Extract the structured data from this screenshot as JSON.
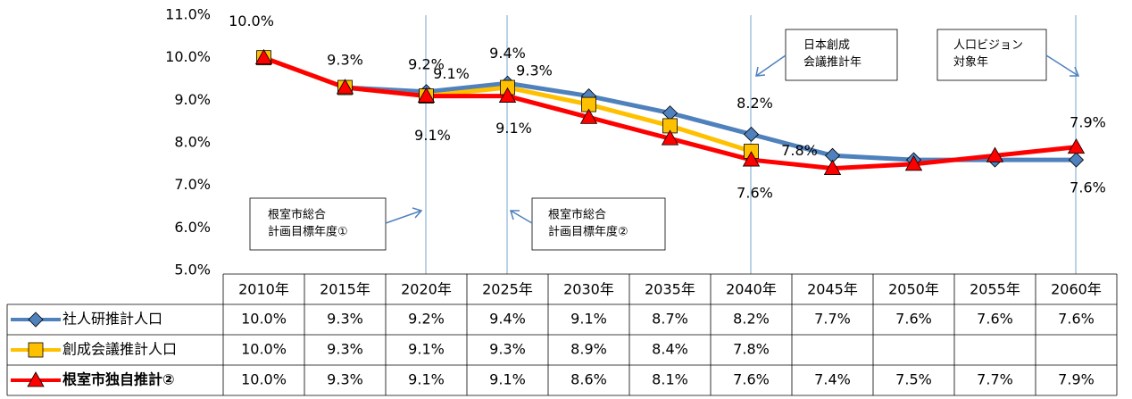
{
  "chart_data": {
    "type": "line",
    "categories": [
      "2010年",
      "2015年",
      "2020年",
      "2025年",
      "2030年",
      "2035年",
      "2040年",
      "2045年",
      "2050年",
      "2055年",
      "2060年"
    ],
    "series": [
      {
        "name": "社人研推計人口",
        "color": "#4f81bd",
        "marker": "diamond",
        "values": [
          10.0,
          9.3,
          9.2,
          9.4,
          9.1,
          8.7,
          8.2,
          7.7,
          7.6,
          7.6,
          7.6
        ],
        "value_labels": [
          "10.0%",
          "9.3%",
          "9.2%",
          "9.4%",
          "9.1%",
          "8.7%",
          "8.2%",
          "7.7%",
          "7.6%",
          "7.6%",
          "7.6%"
        ]
      },
      {
        "name": "創成会議推計人口",
        "color": "#ffc000",
        "marker": "square",
        "values": [
          10.0,
          9.3,
          9.1,
          9.3,
          8.9,
          8.4,
          7.8,
          null,
          null,
          null,
          null
        ],
        "value_labels": [
          "10.0%",
          "9.3%",
          "9.1%",
          "9.3%",
          "8.9%",
          "8.4%",
          "7.8%",
          null,
          null,
          null,
          null
        ]
      },
      {
        "name": "根室市独自推計②",
        "color": "#ff0000",
        "marker": "triangle",
        "values": [
          10.0,
          9.3,
          9.1,
          9.1,
          8.6,
          8.1,
          7.6,
          7.4,
          7.5,
          7.7,
          7.9
        ],
        "value_labels": [
          "10.0%",
          "9.3%",
          "9.1%",
          "9.1%",
          "8.6%",
          "8.1%",
          "7.6%",
          "7.4%",
          "7.5%",
          "7.7%",
          "7.9%"
        ]
      }
    ],
    "ylim": [
      5,
      11
    ],
    "yticks": [
      {
        "value": 5,
        "label": "5.0%"
      },
      {
        "value": 6,
        "label": "6.0%"
      },
      {
        "value": 7,
        "label": "7.0%"
      },
      {
        "value": 8,
        "label": "8.0%"
      },
      {
        "value": 9,
        "label": "9.0%"
      },
      {
        "value": 10,
        "label": "10.0%"
      },
      {
        "value": 11,
        "label": "11.0%"
      }
    ],
    "annotations": [
      {
        "lines": [
          "根室市総合",
          "計画目標年度①"
        ]
      },
      {
        "lines": [
          "根室市総合",
          "計画目標年度②"
        ]
      },
      {
        "lines": [
          "日本創成",
          "会議推計年"
        ]
      },
      {
        "lines": [
          "人口ビジョン",
          "対象年"
        ]
      }
    ]
  }
}
